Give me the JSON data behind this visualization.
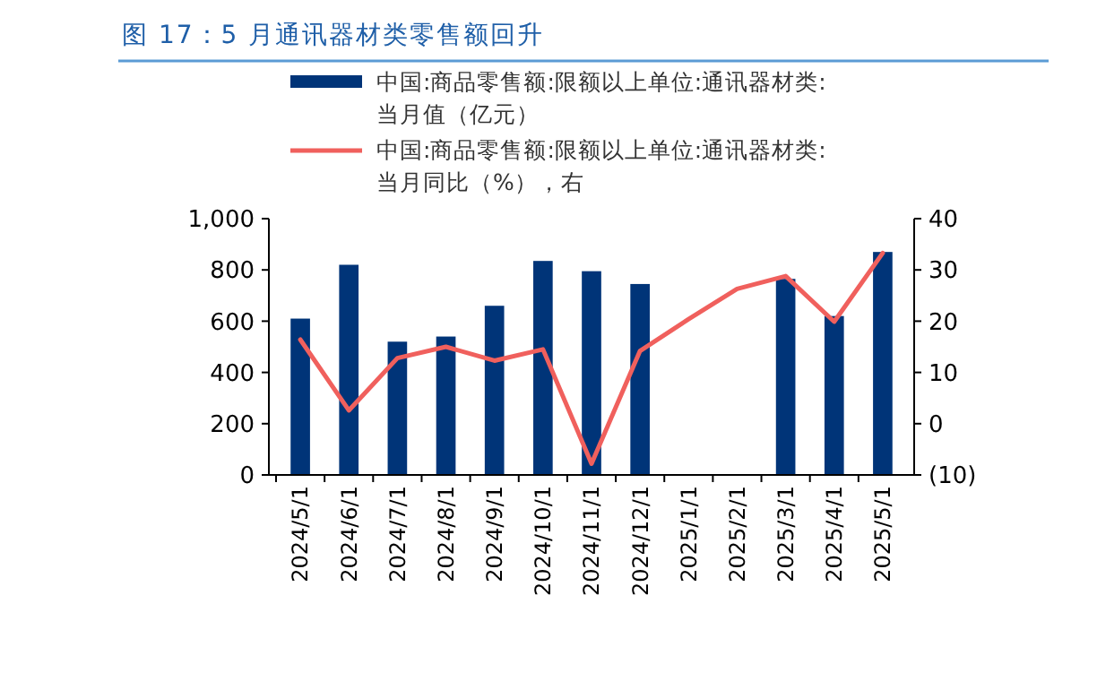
{
  "chart_data": {
    "type": "bar",
    "title": "图 17：5 月通讯器材类零售额回升",
    "categories": [
      "2024/5/1",
      "2024/6/1",
      "2024/7/1",
      "2024/8/1",
      "2024/9/1",
      "2024/10/1",
      "2024/11/1",
      "2024/12/1",
      "2025/1/1",
      "2025/2/1",
      "2025/3/1",
      "2025/4/1",
      "2025/5/1"
    ],
    "series": [
      {
        "name": "中国:商品零售额:限额以上单位:通讯器材类:当月值（亿元）",
        "color": "#003478",
        "values": [
          610,
          820,
          520,
          540,
          660,
          835,
          795,
          745,
          null,
          null,
          765,
          620,
          870
        ]
      },
      {
        "name": "中国:商品零售额:限额以上单位:通讯器材类:当月同比（%），右",
        "type": "line",
        "axis": "y2",
        "color": "#f0605d",
        "values": [
          16.4,
          2.6,
          12.8,
          15,
          12.3,
          14.5,
          -7.8,
          14.2,
          20.4,
          26.3,
          28.8,
          19.9,
          33.3
        ]
      }
    ],
    "ylim": [
      0,
      1000
    ],
    "yticks": [
      0,
      200,
      400,
      600,
      800,
      {
        "value": 1000,
        "label": "1,000"
      }
    ],
    "y2lim": [
      -10,
      40
    ],
    "y2ticks": [
      {
        "value": -10,
        "label": "(10)"
      },
      0,
      10,
      20,
      30,
      40
    ],
    "legend": "top",
    "grid": false
  }
}
